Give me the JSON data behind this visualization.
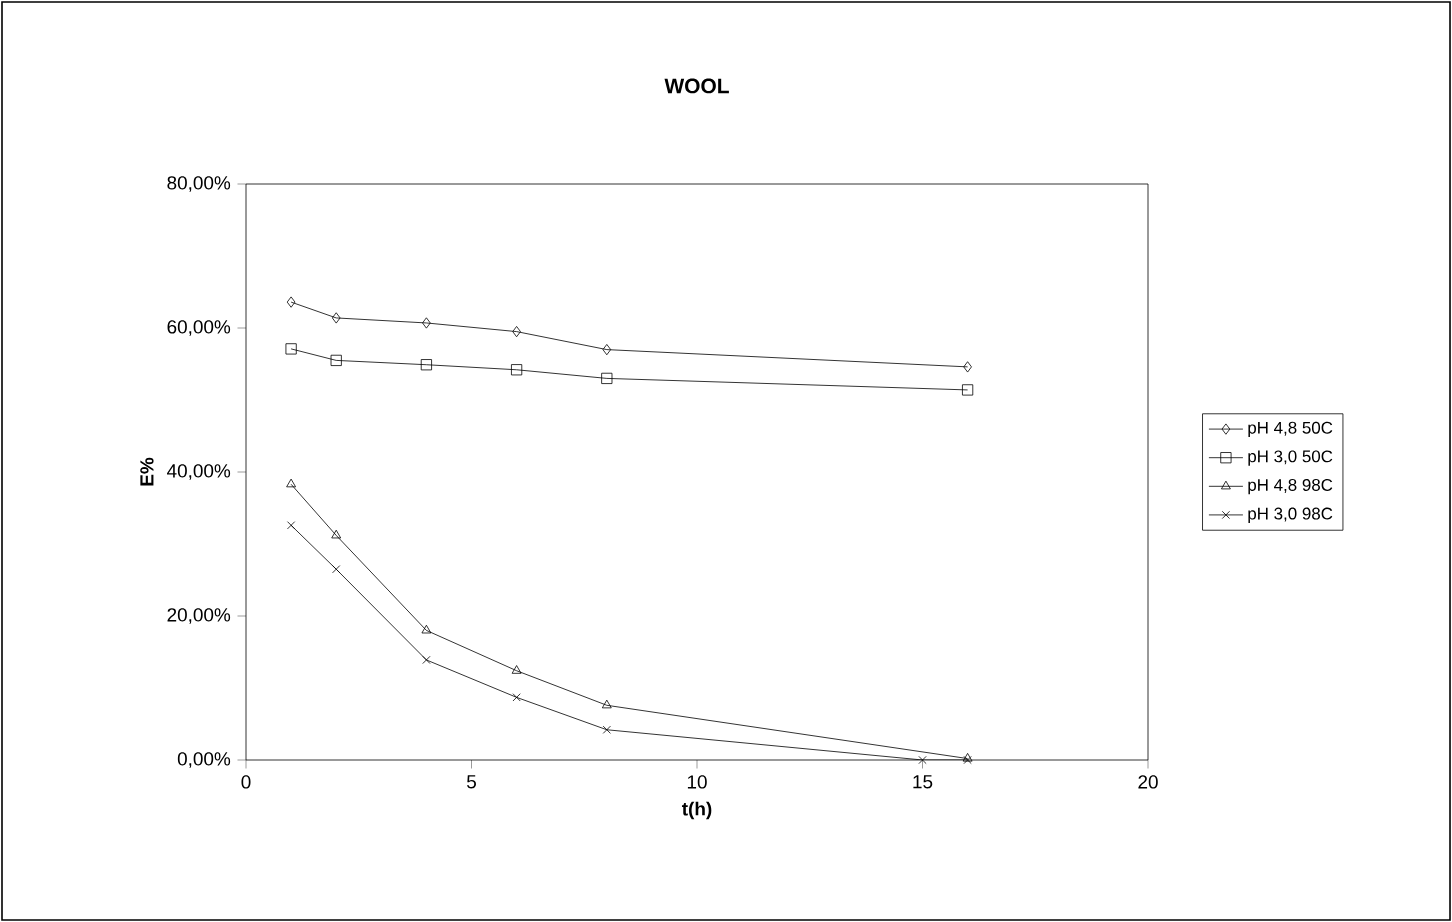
{
  "chart_data": {
    "type": "line",
    "title": "WOOL",
    "xlabel": "t(h)",
    "ylabel": "E%",
    "xlim": [
      0,
      20
    ],
    "xticks": [
      0,
      5,
      10,
      15,
      20
    ],
    "ylim": [
      0,
      80
    ],
    "yticks": [
      {
        "value": 0,
        "label": "0,00%"
      },
      {
        "value": 20,
        "label": "20,00%"
      },
      {
        "value": 40,
        "label": "40,00%"
      },
      {
        "value": 60,
        "label": "60,00%"
      },
      {
        "value": 80,
        "label": "80,00%"
      }
    ],
    "legend": "right",
    "grid": false,
    "line_style": "solid",
    "series": [
      {
        "name": "pH 4,8 50C",
        "color": "#000000",
        "marker": "diamond",
        "x": [
          1,
          2,
          4,
          6,
          8,
          16
        ],
        "values": [
          63.6,
          61.4,
          60.7,
          59.5,
          57.0,
          54.6
        ]
      },
      {
        "name": "pH 3,0 50C",
        "color": "#000000",
        "marker": "square",
        "x": [
          1,
          2,
          4,
          6,
          8,
          16
        ],
        "values": [
          57.1,
          55.5,
          54.9,
          54.2,
          53.0,
          51.4
        ]
      },
      {
        "name": "pH 4,8 98C",
        "color": "#000000",
        "marker": "triangle",
        "x": [
          1,
          2,
          4,
          6,
          8,
          16
        ],
        "values": [
          38.3,
          31.2,
          18.0,
          12.4,
          7.6,
          0.2
        ]
      },
      {
        "name": "pH 3,0 98C",
        "color": "#000000",
        "marker": "cross",
        "x": [
          1,
          2,
          4,
          6,
          8,
          15,
          16
        ],
        "values": [
          32.6,
          26.5,
          13.9,
          8.7,
          4.2,
          0.0,
          0.0
        ]
      }
    ]
  }
}
